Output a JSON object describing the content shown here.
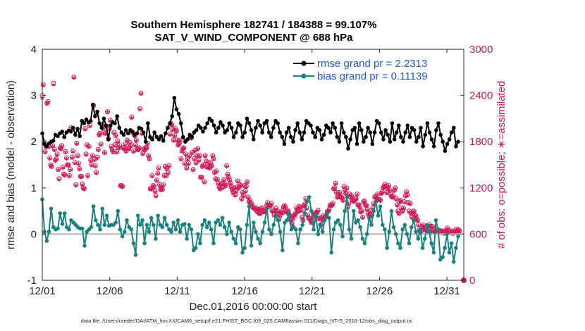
{
  "chart_data": {
    "type": "line",
    "title": "Southern Hemisphere 182741 / 184388 = 99.107%",
    "subtitle": "SAT_V_WIND_COMPONENT @ 688 hPa",
    "xlabel": "Dec.01,2016 00:00:00 start",
    "ylabel": "rmse and bias (model - observation)",
    "ylabel_right": "# of obs: o=possible; ∗=assimilated",
    "x_tick_labels": [
      "12/01",
      "12/06",
      "12/11",
      "12/16",
      "12/21",
      "12/26",
      "12/31"
    ],
    "x_tick_days": [
      0,
      5,
      10,
      15,
      20,
      25,
      30
    ],
    "xlim": [
      0,
      31.25
    ],
    "ylim": [
      -1,
      4
    ],
    "y_ticks": [
      "-1",
      "0",
      "1",
      "2",
      "3",
      "4"
    ],
    "y_right_lim": [
      0,
      3000
    ],
    "y_right_ticks": [
      "0",
      "600",
      "1200",
      "1800",
      "2400",
      "3000"
    ],
    "series": [
      {
        "name": "rmse grand pr = 2.2313",
        "color": "#000000",
        "values": [
          2.18,
          1.95,
          1.9,
          1.96,
          2.0,
          2.02,
          2.15,
          2.12,
          2.18,
          2.22,
          2.1,
          2.2,
          2.24,
          2.22,
          2.3,
          2.15,
          2.28,
          2.12,
          2.45,
          2.4,
          2.48,
          2.42,
          2.45,
          2.8,
          2.55,
          2.65,
          2.4,
          2.3,
          2.5,
          2.35,
          2.05,
          2.35,
          2.42,
          2.4,
          2.55,
          2.3,
          2.2,
          2.15,
          2.25,
          2.18,
          2.25,
          2.22,
          2.15,
          2.18,
          2.3,
          2.28,
          2.2,
          2.0,
          2.4,
          2.1,
          2.05,
          2.2,
          2.1,
          2.05,
          2.12,
          2.02,
          2.18,
          2.3,
          2.4,
          2.55,
          2.95,
          2.7,
          2.6,
          2.4,
          2.1,
          2.0,
          2.05,
          2.15,
          2.1,
          2.2,
          2.25,
          2.35,
          2.3,
          2.22,
          2.3,
          2.4,
          2.5,
          2.45,
          2.35,
          2.2,
          2.3,
          2.42,
          2.35,
          2.2,
          2.25,
          2.4,
          2.3,
          2.1,
          2.2,
          2.4,
          2.35,
          2.1,
          2.2,
          2.5,
          2.4,
          2.25,
          2.05,
          2.3,
          2.45,
          2.35,
          2.2,
          2.4,
          2.45,
          2.2,
          2.1,
          2.3,
          2.45,
          2.4,
          2.2,
          2.1,
          1.95,
          2.2,
          2.3,
          2.1,
          2.0,
          2.25,
          2.4,
          2.2,
          2.05,
          2.2,
          2.45,
          2.4,
          2.35,
          2.2,
          2.1,
          2.3,
          2.25,
          2.05,
          2.15,
          2.35,
          2.3,
          2.2,
          2.4,
          2.3,
          2.1,
          2.0,
          2.4,
          2.2,
          2.1,
          1.85,
          2.05,
          2.25,
          2.3,
          1.95,
          2.4,
          2.25,
          2.0,
          2.1,
          2.3,
          2.2,
          1.95,
          2.2,
          2.45,
          2.4,
          2.2,
          2.05,
          2.25,
          2.15,
          2.0,
          2.4,
          2.05,
          2.2,
          2.35,
          2.1,
          2.0,
          2.2,
          2.35,
          2.1,
          2.3,
          2.25,
          2.0,
          2.1,
          2.3,
          1.9,
          2.15,
          2.4,
          2.2,
          2.05,
          1.9,
          2.25,
          2.4,
          2.15,
          2.0,
          1.8,
          1.95,
          2.05,
          2.2,
          2.3,
          1.9,
          2.0
        ]
      },
      {
        "name": "bias grand pr = 0.11139",
        "color": "#1a8080",
        "values": [
          0.75,
          0.05,
          -0.15,
          0.05,
          0.55,
          0.15,
          0.1,
          0.12,
          0.45,
          0.22,
          0.45,
          0.15,
          0.1,
          0.3,
          0.25,
          0.2,
          0.15,
          0.12,
          0.12,
          -0.25,
          0.05,
          0.1,
          0.15,
          0.6,
          0.3,
          0.2,
          0.1,
          0.55,
          0.2,
          0.4,
          0.18,
          0.2,
          0.2,
          0.25,
          0.5,
          0.1,
          -0.05,
          0.05,
          0.3,
          0.15,
          0.1,
          -0.2,
          -0.45,
          0.4,
          0.2,
          0.3,
          -0.2,
          0.2,
          0.05,
          0.35,
          0.2,
          -0.1,
          0.4,
          0.2,
          0.15,
          0.35,
          0.2,
          0.1,
          0.05,
          0.25,
          0.1,
          0.3,
          0.05,
          0.2,
          0.22,
          -0.1,
          0.2,
          0.1,
          -0.35,
          -0.3,
          0.0,
          -0.2,
          0.2,
          0.3,
          0.15,
          0.25,
          0.1,
          -0.2,
          0.25,
          0.3,
          0.2,
          0.35,
          0.15,
          0.0,
          0.25,
          0.05,
          -0.1,
          -0.2,
          0.15,
          0.1,
          -0.4,
          -0.3,
          0.2,
          0.6,
          -0.25,
          0.25,
          0.05,
          -0.1,
          -0.2,
          0.05,
          0.25,
          0.55,
          0.1,
          0.0,
          0.2,
          0.4,
          0.3,
          0.05,
          -0.35,
          0.25,
          0.3,
          0.45,
          0.1,
          0.15,
          0.1,
          -0.2,
          0.1,
          0.2,
          0.45,
          0.7,
          0.8,
          0.5,
          0.1,
          0.4,
          0.0,
          0.2,
          0.05,
          0.3,
          0.45,
          0.35,
          -0.4,
          0.1,
          0.25,
          0.3,
          0.2,
          -0.05,
          0.5,
          0.8,
          0.1,
          -0.1,
          0.5,
          0.25,
          0.3,
          0.15,
          -0.1,
          -0.2,
          0.0,
          0.35,
          0.2,
          0.5,
          0.7,
          0.4,
          0.6,
          0.2,
          0.1,
          -0.3,
          0.05,
          0.5,
          0.15,
          0.0,
          -0.2,
          -0.3,
          0.1,
          0.2,
          0.0,
          -0.2,
          0.15,
          0.3,
          0.05,
          -0.1,
          0.1,
          -0.3,
          -0.1,
          0.2,
          0.05,
          -0.2,
          -0.4,
          0.3,
          0.1,
          -0.55,
          -0.5,
          -0.3,
          0.0,
          -0.4,
          -0.2,
          -0.6,
          -0.3,
          -0.05
        ]
      }
    ],
    "obs_assimilated": [
      2350,
      2520,
      1780,
      1650,
      1720,
      2280,
      2300,
      1720,
      1570,
      1480,
      1460,
      1730,
      2530,
      1680,
      1540,
      1560,
      1620,
      1420,
      1300,
      1700,
      1690,
      1730,
      1450,
      1360,
      1350,
      1650,
      1570,
      1480,
      1480,
      1340,
      1420,
      1960,
      1580,
      1660,
      2620,
      1510,
      1220,
      1760,
      1600,
      1500,
      1430,
      1330,
      1330,
      1230,
      1180,
      1170,
      1950,
      1620,
      1740,
      1340,
      1720,
      1990,
      1540,
      1480,
      1600,
      2250,
      1550,
      1470,
      1380,
      1580,
      1680,
      1870,
      1890,
      1750,
      2000,
      1960,
      1900,
      1640,
      1890,
      1980,
      2170,
      1820,
      1950,
      2060,
      1720,
      1680,
      1650,
      1900,
      1740,
      1860,
      1650,
      1790,
      1700,
      1730,
      1210,
      1210,
      1200,
      1700,
      1690,
      1750,
      1660,
      1800,
      1690,
      1690,
      1770,
      1730,
      2100,
      1900,
      1660,
      1860,
      1740,
      1800,
      1680,
      1680,
      1700,
      2210,
      2410,
      1890,
      1630,
      1690,
      1670,
      1700,
      1700,
      1760,
      1600,
      1560,
      1170,
      1170,
      1340,
      1210,
      1200,
      1140,
      1080,
      1280,
      1370,
      1440,
      1220,
      1160,
      1180,
      1160,
      1220,
      1340,
      1460,
      1340,
      1430,
      1380,
      1470,
      1880,
      2020,
      2000,
      1940,
      1800,
      1860,
      1950,
      1920,
      1800,
      1740,
      1760,
      1800,
      1560,
      1660,
      1690,
      1700,
      1500,
      1620,
      1440,
      1560,
      1500,
      1600,
      1840,
      1830,
      1640,
      1420,
      1560,
      1670,
      1510,
      1600,
      1690,
      1540,
      1600,
      1320,
      1320,
      1460,
      1480,
      1260,
      1600,
      1530,
      1450,
      1460,
      1510,
      1440,
      1500,
      1470,
      1600,
      1560,
      1380,
      1300,
      1400,
      1290,
      1240,
      1190,
      1170,
      1230,
      1240,
      1190,
      1290,
      1230,
      1210,
      1470,
      1360,
      1320,
      1280,
      1240,
      1200,
      1160,
      1120,
      1180,
      1090,
      1140,
      1190,
      1270,
      1180,
      1220,
      1210,
      1040,
      1120,
      1080,
      1210,
      1140,
      1200,
      1260,
      1060,
      1000,
      1020,
      970,
      970,
      930,
      920,
      920,
      900,
      920,
      870,
      900,
      850,
      850,
      910,
      920,
      880,
      870,
      890,
      870,
      950,
      990,
      960,
      940,
      950,
      980,
      880,
      880,
      830,
      880,
      920,
      880,
      840,
      770,
      820,
      860,
      880,
      860,
      930,
      950,
      930,
      870,
      880,
      880,
      830,
      810,
      760,
      720,
      780,
      820,
      830,
      850,
      920,
      880,
      880,
      940,
      930,
      890,
      800,
      760,
      950,
      970,
      1040,
      920,
      830,
      790,
      780,
      760,
      730,
      750,
      810,
      840,
      840,
      860,
      860,
      890,
      780,
      790,
      700,
      790,
      760,
      820,
      800,
      800,
      820,
      870,
      880,
      900,
      960,
      950,
      960,
      980,
      1170,
      1180,
      1240,
      1120,
      1060,
      1070,
      1120,
      1090,
      1060,
      1050,
      1020,
      1200,
      1150,
      1110,
      1180,
      930,
      980,
      1100,
      1060,
      1080,
      1020,
      1010,
      1010,
      1040,
      1040,
      1100,
      960,
      960,
      930,
      870,
      880,
      800,
      1000,
      1010,
      960,
      950,
      900,
      850,
      820,
      880,
      820,
      830,
      920,
      980,
      1060,
      1070,
      1040,
      1100,
      1030,
      1030,
      1020,
      1110,
      1130,
      1180,
      1200,
      1230,
      1200,
      1120,
      1170,
      1210,
      1150,
      1100,
      1070,
      1060,
      1070,
      1150,
      1180,
      1040,
      960,
      880,
      850,
      1000,
      1020,
      920,
      880,
      920,
      1000,
      1080,
      1130,
      1090,
      990,
      880,
      980,
      850,
      800,
      870,
      880,
      830,
      820,
      780,
      760,
      700,
      630,
      610,
      620,
      680,
      700,
      670,
      650,
      630,
      630,
      620,
      640,
      700,
      680,
      600,
      680,
      630,
      620,
      610,
      620,
      640,
      630,
      630,
      610,
      620,
      600,
      620,
      610,
      590,
      620,
      630,
      660,
      620,
      610,
      620,
      600,
      620,
      590,
      600,
      610,
      640,
      600,
      630,
      640,
      620
    ],
    "obs_possible": [
      2400,
      2540,
      1800,
      1670,
      1740,
      2300,
      2320,
      1740,
      1590,
      1500,
      1480,
      1750,
      2560,
      1700,
      1560,
      1580,
      1640,
      1440,
      1320,
      1720,
      1710,
      1750,
      1470,
      1380,
      1370,
      1670,
      1590,
      1500,
      1500,
      1360,
      1440,
      1980,
      1600,
      1680,
      2640,
      1530,
      1240,
      1780,
      1620,
      1520,
      1450,
      1350,
      1350,
      1250,
      1200,
      1190,
      1970,
      1640,
      1760,
      1360,
      1740,
      2010,
      1560,
      1500,
      1620,
      2270,
      1570,
      1490,
      1400,
      1600,
      1700,
      1890,
      1910,
      1770,
      2020,
      1980,
      1920,
      1660,
      1910,
      2000,
      2190,
      1840,
      1970,
      2080,
      1740,
      1700,
      1670,
      1920,
      1760,
      1880,
      1670,
      1810,
      1720,
      1750,
      1230,
      1230,
      1220,
      1720,
      1710,
      1770,
      1680,
      1820,
      1710,
      1710,
      1790,
      1750,
      2120,
      1920,
      1680,
      1880,
      1760,
      1820,
      1700,
      1700,
      1720,
      2230,
      2430,
      1910,
      1650,
      1710,
      1690,
      1720,
      1720,
      1780,
      1620,
      1580,
      1190,
      1190,
      1360,
      1230,
      1220,
      1160,
      1100,
      1300,
      1390,
      1460,
      1240,
      1180,
      1200,
      1180,
      1240,
      1360,
      1480,
      1360,
      1450,
      1400,
      1490,
      1900,
      2040,
      2020,
      1960,
      1820,
      1880,
      1970,
      1940,
      1820,
      1760,
      1780,
      1820,
      1580,
      1680,
      1710,
      1720,
      1520,
      1640,
      1460,
      1580,
      1520,
      1620,
      1860,
      1850,
      1660,
      1440,
      1580,
      1690,
      1530,
      1620,
      1710,
      1560,
      1620,
      1340,
      1340,
      1480,
      1500,
      1280,
      1620,
      1550,
      1470,
      1480,
      1530,
      1460,
      1520,
      1490,
      1620,
      1580,
      1400,
      1320,
      1420,
      1310,
      1260,
      1210,
      1190,
      1250,
      1260,
      1210,
      1310,
      1250,
      1230,
      1490,
      1380,
      1340,
      1300,
      1260,
      1220,
      1180,
      1140,
      1200,
      1110,
      1160,
      1210,
      1290,
      1200,
      1240,
      1230,
      1060,
      1140,
      1100,
      1230,
      1160,
      1220,
      1280,
      1080,
      1020,
      1040,
      990,
      990,
      950,
      940,
      940,
      920,
      940,
      890,
      920,
      870,
      870,
      930,
      940,
      900,
      890,
      910,
      890,
      970,
      1010,
      980,
      960,
      970,
      1000,
      900,
      900,
      850,
      900,
      940,
      900,
      860,
      790,
      840,
      880,
      900,
      880,
      950,
      970,
      950,
      890,
      900,
      900,
      850,
      830,
      780,
      740,
      800,
      840,
      850,
      870,
      940,
      900,
      900,
      960,
      950,
      910,
      820,
      780,
      970,
      990,
      1060,
      940,
      850,
      810,
      800,
      780,
      750,
      770,
      830,
      860,
      860,
      880,
      880,
      910,
      800,
      810,
      720,
      810,
      780,
      840,
      820,
      820,
      840,
      890,
      900,
      920,
      980,
      970,
      980,
      1000,
      1190,
      1200,
      1260,
      1140,
      1080,
      1090,
      1140,
      1110,
      1080,
      1070,
      1040,
      1220,
      1170,
      1130,
      1200,
      950,
      1000,
      1120,
      1080,
      1100,
      1040,
      1030,
      1030,
      1060,
      1060,
      1120,
      980,
      980,
      950,
      890,
      900,
      820,
      1020,
      1030,
      980,
      970,
      920,
      870,
      840,
      900,
      840,
      850,
      940,
      1000,
      1080,
      1090,
      1060,
      1120,
      1050,
      1050,
      1040,
      1130,
      1150,
      1200,
      1220,
      1250,
      1220,
      1140,
      1190,
      1230,
      1170,
      1120,
      1090,
      1080,
      1090,
      1170,
      1200,
      1060,
      980,
      900,
      870,
      1020,
      1040,
      940,
      900,
      940,
      1020,
      1100,
      1150,
      1110,
      1010,
      900,
      1000,
      870,
      820,
      890,
      900,
      850,
      840,
      800,
      780,
      720,
      650,
      630,
      640,
      700,
      720,
      690,
      670,
      650,
      650,
      640,
      660,
      720,
      700,
      620,
      700,
      650,
      640,
      630,
      640,
      660,
      650,
      650,
      630,
      640,
      620,
      640,
      630,
      610,
      640,
      650,
      680,
      640,
      630,
      640,
      620,
      640,
      610,
      620,
      630,
      660,
      620,
      650,
      660,
      640
    ],
    "obs_color": "#d21a56",
    "legend_location": "top-right"
  },
  "footer": "data file: /Users/raeder/DAI/ATM_forcXX/CAM6_setup/f.e21.FHIST_BGC.f09_025.CAM6assim.011/Diags_NTrS_2016-12/obs_diag_output.nc"
}
